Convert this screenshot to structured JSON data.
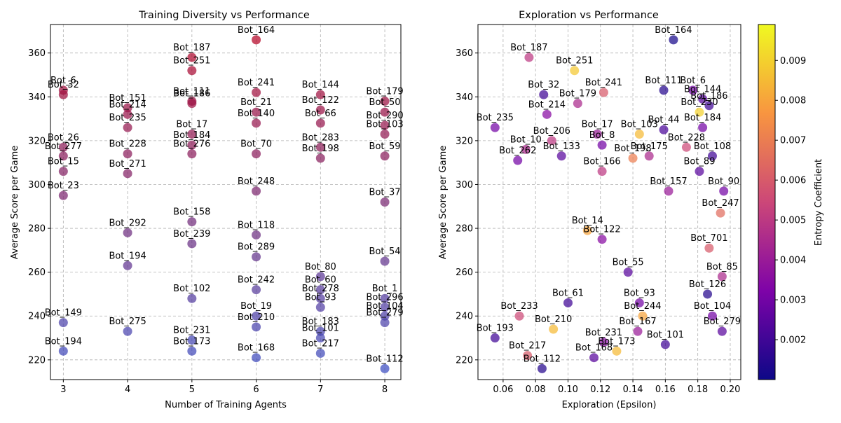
{
  "colors": {
    "left_cmap": [
      "#3b4cc0",
      "#b40426"
    ],
    "right_cmap": [
      "#0d0887",
      "#7e03a8",
      "#cc4778",
      "#f89540",
      "#f0f921"
    ]
  },
  "chart_data": [
    {
      "type": "scatter",
      "title": "Training Diversity vs Performance",
      "xlabel": "Number of Training Agents",
      "ylabel": "Average Score per Game",
      "xlim": [
        2.8,
        8.25
      ],
      "ylim": [
        211,
        373
      ],
      "xticks": [
        3,
        4,
        5,
        6,
        7,
        8
      ],
      "yticks": [
        220,
        240,
        260,
        280,
        300,
        320,
        340,
        360
      ],
      "grid": true,
      "color_scale": "coolwarm by score",
      "points": [
        {
          "label": "Bot_6",
          "x": 3,
          "y": 343
        },
        {
          "label": "Bot_32",
          "x": 3,
          "y": 341
        },
        {
          "label": "Bot_26",
          "x": 3,
          "y": 317
        },
        {
          "label": "Bot_277",
          "x": 3,
          "y": 313
        },
        {
          "label": "Bot_15",
          "x": 3,
          "y": 306
        },
        {
          "label": "Bot_23",
          "x": 3,
          "y": 295
        },
        {
          "label": "Bot_149",
          "x": 3,
          "y": 237
        },
        {
          "label": "Bot_194",
          "x": 3,
          "y": 224
        },
        {
          "label": "Bot_151",
          "x": 4,
          "y": 335
        },
        {
          "label": "Bot_214",
          "x": 4,
          "y": 332
        },
        {
          "label": "Bot_235",
          "x": 4,
          "y": 326
        },
        {
          "label": "Bot_228",
          "x": 4,
          "y": 314
        },
        {
          "label": "Bot_271",
          "x": 4,
          "y": 305
        },
        {
          "label": "Bot_292",
          "x": 4,
          "y": 278
        },
        {
          "label": "Bot_194",
          "x": 4,
          "y": 263
        },
        {
          "label": "Bot_275",
          "x": 4,
          "y": 233
        },
        {
          "label": "Bot_187",
          "x": 5,
          "y": 358
        },
        {
          "label": "Bot_251",
          "x": 5,
          "y": 352
        },
        {
          "label": "Bot_111",
          "x": 5,
          "y": 338
        },
        {
          "label": "Bot_186",
          "x": 5,
          "y": 337
        },
        {
          "label": "Bot_17",
          "x": 5,
          "y": 323
        },
        {
          "label": "Bot_184",
          "x": 5,
          "y": 318
        },
        {
          "label": "Bot_276",
          "x": 5,
          "y": 314
        },
        {
          "label": "Bot_158",
          "x": 5,
          "y": 283
        },
        {
          "label": "Bot_239",
          "x": 5,
          "y": 273
        },
        {
          "label": "Bot_102",
          "x": 5,
          "y": 248
        },
        {
          "label": "Bot_231",
          "x": 5,
          "y": 229
        },
        {
          "label": "Bot_173",
          "x": 5,
          "y": 224
        },
        {
          "label": "Bot_164",
          "x": 6,
          "y": 366
        },
        {
          "label": "Bot_241",
          "x": 6,
          "y": 342
        },
        {
          "label": "Bot_21",
          "x": 6,
          "y": 333
        },
        {
          "label": "Bot_140",
          "x": 6,
          "y": 328
        },
        {
          "label": "Bot_70",
          "x": 6,
          "y": 314
        },
        {
          "label": "Bot_248",
          "x": 6,
          "y": 297
        },
        {
          "label": "Bot_118",
          "x": 6,
          "y": 277
        },
        {
          "label": "Bot_289",
          "x": 6,
          "y": 267
        },
        {
          "label": "Bot_242",
          "x": 6,
          "y": 252
        },
        {
          "label": "Bot_19",
          "x": 6,
          "y": 240
        },
        {
          "label": "Bot_210",
          "x": 6,
          "y": 235
        },
        {
          "label": "Bot_168",
          "x": 6,
          "y": 221
        },
        {
          "label": "Bot_144",
          "x": 7,
          "y": 341
        },
        {
          "label": "Bot_122",
          "x": 7,
          "y": 334
        },
        {
          "label": "Bot_66",
          "x": 7,
          "y": 328
        },
        {
          "label": "Bot_283",
          "x": 7,
          "y": 317
        },
        {
          "label": "Bot_198",
          "x": 7,
          "y": 312
        },
        {
          "label": "Bot_80",
          "x": 7,
          "y": 258
        },
        {
          "label": "Bot_60",
          "x": 7,
          "y": 252
        },
        {
          "label": "Bot_278",
          "x": 7,
          "y": 248
        },
        {
          "label": "Bot_93",
          "x": 7,
          "y": 244
        },
        {
          "label": "Bot_183",
          "x": 7,
          "y": 233
        },
        {
          "label": "Bot_101",
          "x": 7,
          "y": 230
        },
        {
          "label": "Bot_217",
          "x": 7,
          "y": 223
        },
        {
          "label": "Bot_179",
          "x": 8,
          "y": 338
        },
        {
          "label": "Bot_50",
          "x": 8,
          "y": 333
        },
        {
          "label": "Bot_290",
          "x": 8,
          "y": 327
        },
        {
          "label": "Bot_103",
          "x": 8,
          "y": 323
        },
        {
          "label": "Bot_59",
          "x": 8,
          "y": 313
        },
        {
          "label": "Bot_37",
          "x": 8,
          "y": 292
        },
        {
          "label": "Bot_54",
          "x": 8,
          "y": 265
        },
        {
          "label": "Bot_1",
          "x": 8,
          "y": 248
        },
        {
          "label": "Bot_296",
          "x": 8,
          "y": 244
        },
        {
          "label": "Bot_104",
          "x": 8,
          "y": 240
        },
        {
          "label": "Bot_279",
          "x": 8,
          "y": 237
        },
        {
          "label": "Bot_112",
          "x": 8,
          "y": 216
        }
      ]
    },
    {
      "type": "scatter",
      "title": "Exploration vs Performance",
      "xlabel": "Exploration (Epsilon)",
      "ylabel": "Average Score per Game",
      "xlim": [
        0.0445,
        0.2065
      ],
      "ylim": [
        211,
        373
      ],
      "xticks": [
        0.06,
        0.08,
        0.1,
        0.12,
        0.14,
        0.16,
        0.18,
        0.2
      ],
      "yticks": [
        220,
        240,
        260,
        280,
        300,
        320,
        340,
        360
      ],
      "grid": true,
      "colorbar": {
        "label": "Entropy Coefficient",
        "range": [
          0.001,
          0.0099
        ],
        "ticks": [
          0.002,
          0.003,
          0.004,
          0.005,
          0.006,
          0.007,
          0.008,
          0.009
        ]
      },
      "points": [
        {
          "label": "Bot_164",
          "x": 0.165,
          "y": 366,
          "c": 0.0012
        },
        {
          "label": "Bot_187",
          "x": 0.076,
          "y": 358,
          "c": 0.005
        },
        {
          "label": "Bot_251",
          "x": 0.104,
          "y": 352,
          "c": 0.0088
        },
        {
          "label": "Bot_111",
          "x": 0.159,
          "y": 343,
          "c": 0.0015
        },
        {
          "label": "Bot_6",
          "x": 0.177,
          "y": 343,
          "c": 0.003
        },
        {
          "label": "Bot_241",
          "x": 0.122,
          "y": 342,
          "c": 0.006
        },
        {
          "label": "Bot_32",
          "x": 0.085,
          "y": 341,
          "c": 0.002
        },
        {
          "label": "Bot_144",
          "x": 0.183,
          "y": 339,
          "c": 0.0025
        },
        {
          "label": "Bot_179",
          "x": 0.106,
          "y": 337,
          "c": 0.0045
        },
        {
          "label": "Bot_186",
          "x": 0.187,
          "y": 336,
          "c": 0.002
        },
        {
          "label": "Bot_214",
          "x": 0.087,
          "y": 332,
          "c": 0.0035
        },
        {
          "label": "Bot_230",
          "x": 0.181,
          "y": 333,
          "c": 0.009
        },
        {
          "label": "Bot_235",
          "x": 0.055,
          "y": 326,
          "c": 0.003
        },
        {
          "label": "Bot_17",
          "x": 0.118,
          "y": 323,
          "c": 0.004
        },
        {
          "label": "Bot_103",
          "x": 0.144,
          "y": 323,
          "c": 0.0085
        },
        {
          "label": "Bot_44",
          "x": 0.159,
          "y": 325,
          "c": 0.0022
        },
        {
          "label": "Bot_184",
          "x": 0.183,
          "y": 326,
          "c": 0.003
        },
        {
          "label": "Bot_206",
          "x": 0.09,
          "y": 320,
          "c": 0.005
        },
        {
          "label": "Bot_8",
          "x": 0.121,
          "y": 318,
          "c": 0.003
        },
        {
          "label": "Bot_10",
          "x": 0.074,
          "y": 316,
          "c": 0.0045
        },
        {
          "label": "Bot_228",
          "x": 0.173,
          "y": 317,
          "c": 0.0055
        },
        {
          "label": "Bot_133",
          "x": 0.096,
          "y": 313,
          "c": 0.0025
        },
        {
          "label": "Bot_198",
          "x": 0.14,
          "y": 312,
          "c": 0.007
        },
        {
          "label": "Bot_175",
          "x": 0.15,
          "y": 313,
          "c": 0.0045
        },
        {
          "label": "Bot_108",
          "x": 0.189,
          "y": 313,
          "c": 0.002
        },
        {
          "label": "Bot_262",
          "x": 0.069,
          "y": 311,
          "c": 0.003
        },
        {
          "label": "Bot_166",
          "x": 0.121,
          "y": 306,
          "c": 0.005
        },
        {
          "label": "Bot_89",
          "x": 0.181,
          "y": 306,
          "c": 0.0025
        },
        {
          "label": "Bot_157",
          "x": 0.162,
          "y": 297,
          "c": 0.004
        },
        {
          "label": "Bot_90",
          "x": 0.196,
          "y": 297,
          "c": 0.003
        },
        {
          "label": "Bot_247",
          "x": 0.194,
          "y": 287,
          "c": 0.0065
        },
        {
          "label": "Bot_14",
          "x": 0.112,
          "y": 279,
          "c": 0.008
        },
        {
          "label": "Bot_122",
          "x": 0.121,
          "y": 275,
          "c": 0.0035
        },
        {
          "label": "Bot_701",
          "x": 0.187,
          "y": 271,
          "c": 0.006
        },
        {
          "label": "Bot_55",
          "x": 0.137,
          "y": 260,
          "c": 0.0025
        },
        {
          "label": "Bot_85",
          "x": 0.195,
          "y": 258,
          "c": 0.0045
        },
        {
          "label": "Bot_126",
          "x": 0.186,
          "y": 250,
          "c": 0.0015
        },
        {
          "label": "Bot_93",
          "x": 0.144,
          "y": 246,
          "c": 0.003
        },
        {
          "label": "Bot_61",
          "x": 0.1,
          "y": 246,
          "c": 0.002
        },
        {
          "label": "Bot_233",
          "x": 0.07,
          "y": 240,
          "c": 0.0055
        },
        {
          "label": "Bot_244",
          "x": 0.146,
          "y": 240,
          "c": 0.008
        },
        {
          "label": "Bot_104",
          "x": 0.189,
          "y": 240,
          "c": 0.003
        },
        {
          "label": "Bot_210",
          "x": 0.091,
          "y": 234,
          "c": 0.0085
        },
        {
          "label": "Bot_193",
          "x": 0.055,
          "y": 230,
          "c": 0.002
        },
        {
          "label": "Bot_167",
          "x": 0.143,
          "y": 233,
          "c": 0.004
        },
        {
          "label": "Bot_279",
          "x": 0.195,
          "y": 233,
          "c": 0.0025
        },
        {
          "label": "Bot_231",
          "x": 0.122,
          "y": 228,
          "c": 0.0035
        },
        {
          "label": "Bot_101",
          "x": 0.16,
          "y": 227,
          "c": 0.002
        },
        {
          "label": "Bot_173",
          "x": 0.13,
          "y": 224,
          "c": 0.0085
        },
        {
          "label": "Bot_217",
          "x": 0.075,
          "y": 222,
          "c": 0.006
        },
        {
          "label": "Bot_168",
          "x": 0.116,
          "y": 221,
          "c": 0.0025
        },
        {
          "label": "Bot_112",
          "x": 0.084,
          "y": 216,
          "c": 0.0015
        }
      ]
    }
  ]
}
